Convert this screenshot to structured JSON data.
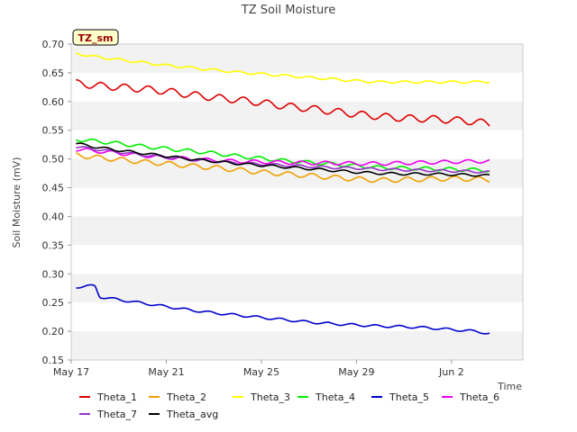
{
  "chart_data": {
    "type": "line",
    "title": "TZ Soil Moisture",
    "xlabel": "Time",
    "ylabel": "Soil Moisture (mV)",
    "badge": "TZ_sm",
    "ylim": [
      0.15,
      0.7
    ],
    "yticks": [
      0.15,
      0.2,
      0.25,
      0.3,
      0.35,
      0.4,
      0.45,
      0.5,
      0.55,
      0.6,
      0.65,
      0.7
    ],
    "ytick_labels": [
      "0.15",
      "0.20",
      "0.25",
      "0.30",
      "0.35",
      "0.40",
      "0.45",
      "0.50",
      "0.55",
      "0.60",
      "0.65",
      "0.70"
    ],
    "xlim": [
      0,
      19
    ],
    "xticks": [
      0,
      4,
      8,
      12,
      16
    ],
    "xtick_labels": [
      "May 17",
      "May 21",
      "May 25",
      "May 29",
      "Jun 2"
    ],
    "x_units": "days since May 17",
    "series": [
      {
        "name": "Theta_1",
        "color": "#dd0000",
        "x": [
          0.2,
          1,
          2,
          3,
          4,
          5,
          6,
          7,
          8,
          9,
          10,
          11,
          12,
          13,
          14,
          15,
          16,
          17,
          17.6
        ],
        "values": [
          0.632,
          0.628,
          0.625,
          0.622,
          0.618,
          0.612,
          0.607,
          0.603,
          0.598,
          0.592,
          0.588,
          0.583,
          0.578,
          0.574,
          0.571,
          0.57,
          0.568,
          0.565,
          0.561
        ],
        "amp": 0.006
      },
      {
        "name": "Theta_2",
        "color": "#f0a000",
        "x": [
          0.2,
          1,
          2,
          3,
          4,
          5,
          6,
          7,
          8,
          9,
          10,
          11,
          12,
          13,
          14,
          15,
          16,
          17,
          17.6
        ],
        "values": [
          0.507,
          0.503,
          0.499,
          0.495,
          0.492,
          0.488,
          0.485,
          0.481,
          0.477,
          0.474,
          0.471,
          0.468,
          0.465,
          0.463,
          0.464,
          0.465,
          0.466,
          0.465,
          0.464
        ],
        "amp": 0.004
      },
      {
        "name": "Theta_3",
        "color": "#ffff00",
        "x": [
          0.2,
          1,
          2,
          3,
          4,
          5,
          6,
          7,
          8,
          9,
          10,
          11,
          12,
          13,
          14,
          15,
          16,
          17,
          17.6
        ],
        "values": [
          0.684,
          0.678,
          0.673,
          0.668,
          0.663,
          0.659,
          0.655,
          0.651,
          0.648,
          0.645,
          0.642,
          0.639,
          0.636,
          0.634,
          0.634,
          0.634,
          0.634,
          0.634,
          0.635
        ],
        "amp": 0.002
      },
      {
        "name": "Theta_4",
        "color": "#00ee00",
        "x": [
          0.2,
          1,
          2,
          3,
          4,
          5,
          6,
          7,
          8,
          9,
          10,
          11,
          12,
          13,
          14,
          15,
          16,
          17,
          17.6
        ],
        "values": [
          0.534,
          0.531,
          0.527,
          0.522,
          0.518,
          0.514,
          0.51,
          0.505,
          0.501,
          0.497,
          0.494,
          0.491,
          0.488,
          0.485,
          0.484,
          0.483,
          0.482,
          0.481,
          0.48
        ],
        "amp": 0.003
      },
      {
        "name": "Theta_5",
        "color": "#0000cc",
        "x": [
          0.2,
          0.8,
          1.0,
          1.2,
          2,
          3,
          4,
          5,
          6,
          7,
          8,
          9,
          10,
          11,
          12,
          13,
          14,
          15,
          16,
          17,
          17.6
        ],
        "values": [
          0.277,
          0.279,
          0.279,
          0.26,
          0.255,
          0.249,
          0.243,
          0.237,
          0.232,
          0.228,
          0.224,
          0.22,
          0.216,
          0.213,
          0.211,
          0.209,
          0.208,
          0.206,
          0.203,
          0.2,
          0.196
        ],
        "amp": 0.002
      },
      {
        "name": "Theta_6",
        "color": "#ee00ee",
        "x": [
          0.2,
          1,
          2,
          3,
          4,
          5,
          6,
          7,
          8,
          9,
          10,
          11,
          12,
          13,
          14,
          15,
          16,
          17,
          17.6
        ],
        "values": [
          0.517,
          0.514,
          0.51,
          0.506,
          0.503,
          0.5,
          0.498,
          0.496,
          0.495,
          0.494,
          0.493,
          0.493,
          0.492,
          0.492,
          0.493,
          0.494,
          0.495,
          0.496,
          0.496
        ],
        "amp": 0.003
      },
      {
        "name": "Theta_7",
        "color": "#9933cc",
        "x": [
          0.2,
          1,
          2,
          3,
          4,
          5,
          6,
          7,
          8,
          9,
          10,
          11,
          12,
          13,
          14,
          15,
          16,
          17,
          17.6
        ],
        "values": [
          0.521,
          0.517,
          0.512,
          0.507,
          0.503,
          0.499,
          0.496,
          0.493,
          0.491,
          0.489,
          0.487,
          0.485,
          0.484,
          0.482,
          0.481,
          0.48,
          0.479,
          0.478,
          0.477
        ],
        "amp": 0.002
      },
      {
        "name": "Theta_avg",
        "color": "#000000",
        "x": [
          0.2,
          1,
          2,
          3,
          4,
          5,
          6,
          7,
          8,
          9,
          10,
          11,
          12,
          13,
          14,
          15,
          16,
          17,
          17.6
        ],
        "values": [
          0.527,
          0.521,
          0.515,
          0.51,
          0.505,
          0.5,
          0.496,
          0.492,
          0.489,
          0.486,
          0.483,
          0.48,
          0.477,
          0.475,
          0.474,
          0.474,
          0.473,
          0.472,
          0.471
        ],
        "amp": 0.002
      }
    ],
    "grid": true,
    "legend_position": "bottom"
  }
}
